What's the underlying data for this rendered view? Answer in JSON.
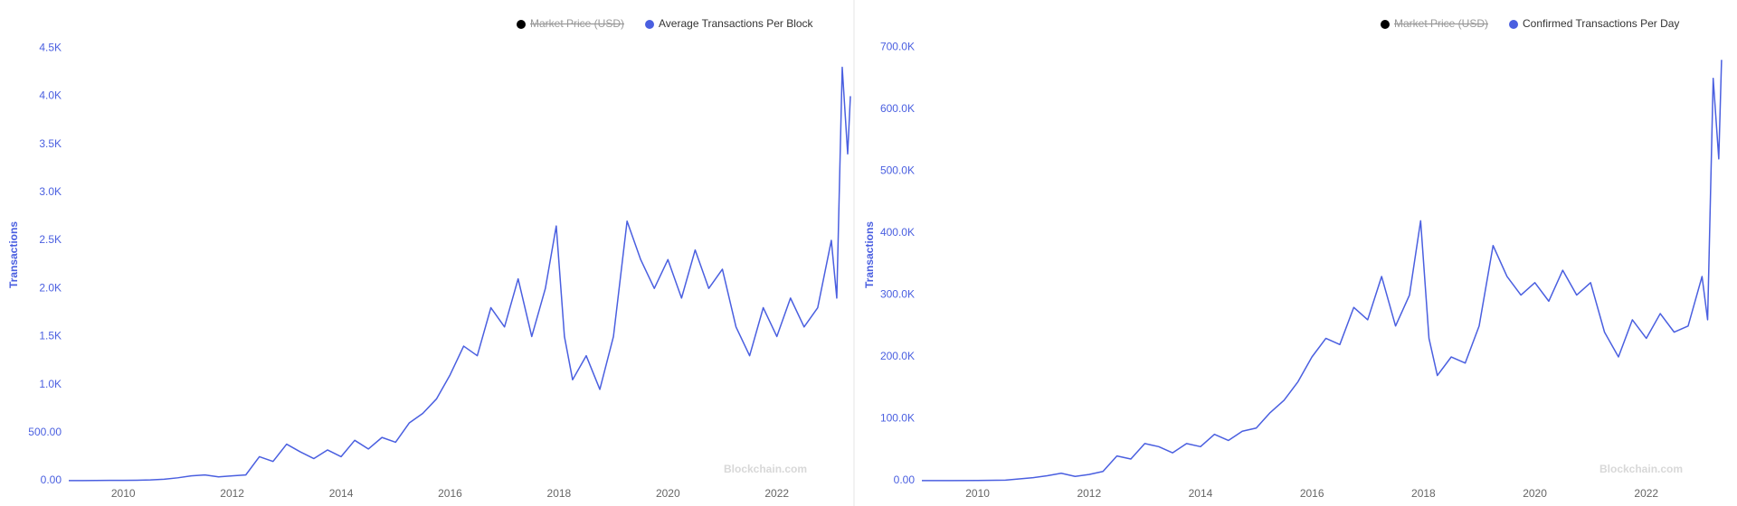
{
  "chart_data": [
    {
      "type": "line",
      "y_axis_label": "Transactions",
      "watermark": "Blockchain.com",
      "hidden_series": {
        "name": "Market Price (USD)",
        "color": "#000000"
      },
      "x": [
        2009,
        2009.25,
        2009.5,
        2009.75,
        2010,
        2010.25,
        2010.5,
        2010.75,
        2011,
        2011.25,
        2011.5,
        2011.75,
        2012,
        2012.25,
        2012.5,
        2012.75,
        2013,
        2013.25,
        2013.5,
        2013.75,
        2014,
        2014.25,
        2014.5,
        2014.75,
        2015,
        2015.25,
        2015.5,
        2015.75,
        2016,
        2016.25,
        2016.5,
        2016.75,
        2017,
        2017.25,
        2017.5,
        2017.75,
        2017.95,
        2018.1,
        2018.25,
        2018.5,
        2018.75,
        2019,
        2019.25,
        2019.5,
        2019.75,
        2020,
        2020.25,
        2020.5,
        2020.75,
        2021,
        2021.25,
        2021.5,
        2021.75,
        2022,
        2022.25,
        2022.5,
        2022.75,
        2023,
        2023.1,
        2023.2,
        2023.3,
        2023.35
      ],
      "series": [
        {
          "name": "Average Transactions Per Block",
          "color": "#4a5fe0",
          "values": [
            1,
            1,
            2,
            3,
            3,
            5,
            8,
            15,
            30,
            50,
            60,
            40,
            50,
            60,
            250,
            200,
            380,
            300,
            230,
            320,
            250,
            420,
            330,
            450,
            400,
            600,
            700,
            850,
            1100,
            1400,
            1300,
            1800,
            1600,
            2100,
            1500,
            2000,
            2650,
            1500,
            1050,
            1300,
            950,
            1500,
            2700,
            2300,
            2000,
            2300,
            1900,
            2400,
            2000,
            2200,
            1600,
            1300,
            1800,
            1500,
            1900,
            1600,
            1800,
            2500,
            1900,
            4300,
            3400,
            4000
          ]
        }
      ],
      "xlim": [
        2009,
        2023.4
      ],
      "ylim": [
        0,
        4700
      ],
      "xticks": [
        2010,
        2012,
        2014,
        2016,
        2018,
        2020,
        2022
      ],
      "yticks": [
        {
          "value": 0,
          "label": "0.00"
        },
        {
          "value": 500,
          "label": "500.00"
        },
        {
          "value": 1000,
          "label": "1.0K"
        },
        {
          "value": 1500,
          "label": "1.5K"
        },
        {
          "value": 2000,
          "label": "2.0K"
        },
        {
          "value": 2500,
          "label": "2.5K"
        },
        {
          "value": 3000,
          "label": "3.0K"
        },
        {
          "value": 3500,
          "label": "3.5K"
        },
        {
          "value": 4000,
          "label": "4.0K"
        },
        {
          "value": 4500,
          "label": "4.5K"
        }
      ]
    },
    {
      "type": "line",
      "y_axis_label": "Transactions",
      "watermark": "Blockchain.com",
      "hidden_series": {
        "name": "Market Price (USD)",
        "color": "#000000"
      },
      "x": [
        2009,
        2009.5,
        2010,
        2010.5,
        2011,
        2011.25,
        2011.5,
        2011.75,
        2012,
        2012.25,
        2012.5,
        2012.75,
        2013,
        2013.25,
        2013.5,
        2013.75,
        2014,
        2014.25,
        2014.5,
        2014.75,
        2015,
        2015.25,
        2015.5,
        2015.75,
        2016,
        2016.25,
        2016.5,
        2016.75,
        2017,
        2017.25,
        2017.5,
        2017.75,
        2017.95,
        2018.1,
        2018.25,
        2018.5,
        2018.75,
        2019,
        2019.25,
        2019.5,
        2019.75,
        2020,
        2020.25,
        2020.5,
        2020.75,
        2021,
        2021.25,
        2021.5,
        2021.75,
        2022,
        2022.25,
        2022.5,
        2022.75,
        2023,
        2023.1,
        2023.2,
        2023.3,
        2023.35
      ],
      "series": [
        {
          "name": "Confirmed Transactions Per Day",
          "color": "#4a5fe0",
          "values": [
            100,
            200,
            400,
            1000,
            5000,
            8000,
            12000,
            7000,
            10000,
            15000,
            40000,
            35000,
            60000,
            55000,
            45000,
            60000,
            55000,
            75000,
            65000,
            80000,
            85000,
            110000,
            130000,
            160000,
            200000,
            230000,
            220000,
            280000,
            260000,
            330000,
            250000,
            300000,
            420000,
            230000,
            170000,
            200000,
            190000,
            250000,
            380000,
            330000,
            300000,
            320000,
            290000,
            340000,
            300000,
            320000,
            240000,
            200000,
            260000,
            230000,
            270000,
            240000,
            250000,
            330000,
            260000,
            650000,
            520000,
            680000
          ]
        }
      ],
      "xlim": [
        2009,
        2023.4
      ],
      "ylim": [
        0,
        730000
      ],
      "xticks": [
        2010,
        2012,
        2014,
        2016,
        2018,
        2020,
        2022
      ],
      "yticks": [
        {
          "value": 0,
          "label": "0.00"
        },
        {
          "value": 100000,
          "label": "100.0K"
        },
        {
          "value": 200000,
          "label": "200.0K"
        },
        {
          "value": 300000,
          "label": "300.0K"
        },
        {
          "value": 400000,
          "label": "400.0K"
        },
        {
          "value": 500000,
          "label": "500.0K"
        },
        {
          "value": 600000,
          "label": "600.0K"
        },
        {
          "value": 700000,
          "label": "700.0K"
        }
      ]
    }
  ]
}
